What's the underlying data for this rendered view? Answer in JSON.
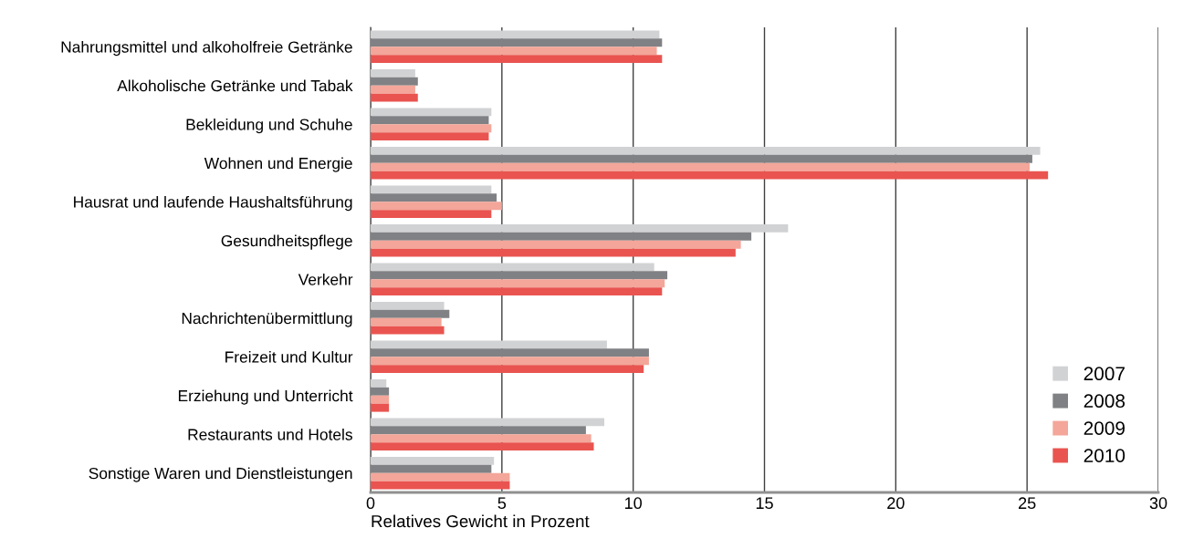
{
  "chart_data": {
    "type": "bar",
    "orientation": "horizontal",
    "xlabel": "Relatives Gewicht in Prozent",
    "categories": [
      "Nahrungsmittel und alkoholfreie Getränke",
      "Alkoholische Getränke und Tabak",
      "Bekleidung und Schuhe",
      "Wohnen und Energie",
      "Hausrat und laufende Haushaltsführung",
      "Gesundheitspflege",
      "Verkehr",
      "Nachrichtenübermittlung",
      "Freizeit und Kultur",
      "Erziehung und Unterricht",
      "Restaurants und Hotels",
      "Sonstige Waren und Dienstleistungen"
    ],
    "series": [
      {
        "name": "2007",
        "color": "#d1d2d4",
        "values": [
          11.0,
          1.7,
          4.6,
          25.5,
          4.6,
          15.9,
          10.8,
          2.8,
          9.0,
          0.6,
          8.9,
          4.7
        ]
      },
      {
        "name": "2008",
        "color": "#808184",
        "values": [
          11.1,
          1.8,
          4.5,
          25.2,
          4.8,
          14.5,
          11.3,
          3.0,
          10.6,
          0.7,
          8.2,
          4.6
        ]
      },
      {
        "name": "2009",
        "color": "#f3a699",
        "values": [
          10.9,
          1.7,
          4.6,
          25.1,
          5.0,
          14.1,
          11.2,
          2.7,
          10.6,
          0.7,
          8.4,
          5.3
        ]
      },
      {
        "name": "2010",
        "color": "#e95450",
        "values": [
          11.1,
          1.8,
          4.5,
          25.8,
          4.6,
          13.9,
          11.1,
          2.8,
          10.4,
          0.7,
          8.5,
          5.3
        ]
      }
    ],
    "xlim": [
      0,
      30
    ],
    "xticks": [
      0,
      5,
      10,
      15,
      20,
      25,
      30
    ],
    "grid": "x",
    "legend": "bottom right"
  }
}
